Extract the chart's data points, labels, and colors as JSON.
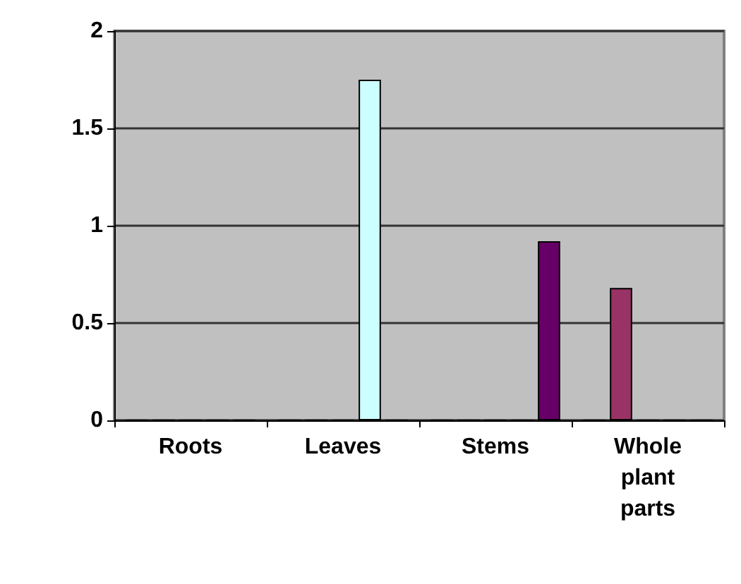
{
  "chart_data": {
    "type": "bar",
    "categories": [
      "Roots",
      "Leaves",
      "Stems",
      "Whole\nplant\nparts"
    ],
    "series": [
      {
        "color": "#7070c8",
        "values": [
          0,
          0,
          0,
          0
        ]
      },
      {
        "color": "#993366",
        "values": [
          0,
          0,
          0,
          0.68
        ]
      },
      {
        "color": "#e8e8b0",
        "values": [
          0,
          0,
          0,
          0
        ]
      },
      {
        "color": "#ccffff",
        "values": [
          0,
          1.75,
          0,
          0
        ]
      },
      {
        "color": "#660066",
        "values": [
          0,
          0,
          0.92,
          0
        ]
      }
    ],
    "ylim": [
      0,
      2
    ],
    "yticks": [
      0,
      0.5,
      1,
      1.5,
      2
    ],
    "grid": "y"
  }
}
